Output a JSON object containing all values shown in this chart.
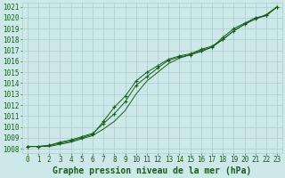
{
  "x": [
    0,
    1,
    2,
    3,
    4,
    5,
    6,
    7,
    8,
    9,
    10,
    11,
    12,
    13,
    14,
    15,
    16,
    17,
    18,
    19,
    20,
    21,
    22,
    23
  ],
  "line1": [
    1008.2,
    1008.2,
    1008.3,
    1008.6,
    1008.8,
    1009.1,
    1009.4,
    1010.3,
    1011.2,
    1012.3,
    1013.8,
    1014.6,
    1015.4,
    1016.1,
    1016.4,
    1016.6,
    1017.0,
    1017.3,
    1018.2,
    1019.0,
    1019.5,
    1020.0,
    1020.2,
    1021.0
  ],
  "line2": [
    1008.2,
    1008.2,
    1008.3,
    1008.5,
    1008.7,
    1009.0,
    1009.3,
    1010.5,
    1011.8,
    1012.8,
    1014.2,
    1015.0,
    1015.6,
    1016.2,
    1016.5,
    1016.7,
    1017.1,
    1017.4,
    1018.0,
    1018.8,
    1019.4,
    1019.9,
    1020.2,
    1021.0
  ],
  "line3": [
    1008.2,
    1008.2,
    1008.2,
    1008.4,
    1008.6,
    1008.9,
    1009.2,
    1009.8,
    1010.5,
    1011.5,
    1013.0,
    1014.2,
    1015.0,
    1015.8,
    1016.3,
    1016.6,
    1016.9,
    1017.3,
    1018.0,
    1018.8,
    1019.4,
    1019.9,
    1020.3,
    1021.0
  ],
  "bg_color": "#cce8e8",
  "grid_color": "#aacccc",
  "line_color": "#1a5c1a",
  "ylabel_min": 1008,
  "ylabel_max": 1021,
  "xlabel": "Graphe pression niveau de la mer (hPa)",
  "xlabel_fontsize": 7,
  "tick_fontsize": 5.5,
  "axis_color": "#1a5c1a"
}
